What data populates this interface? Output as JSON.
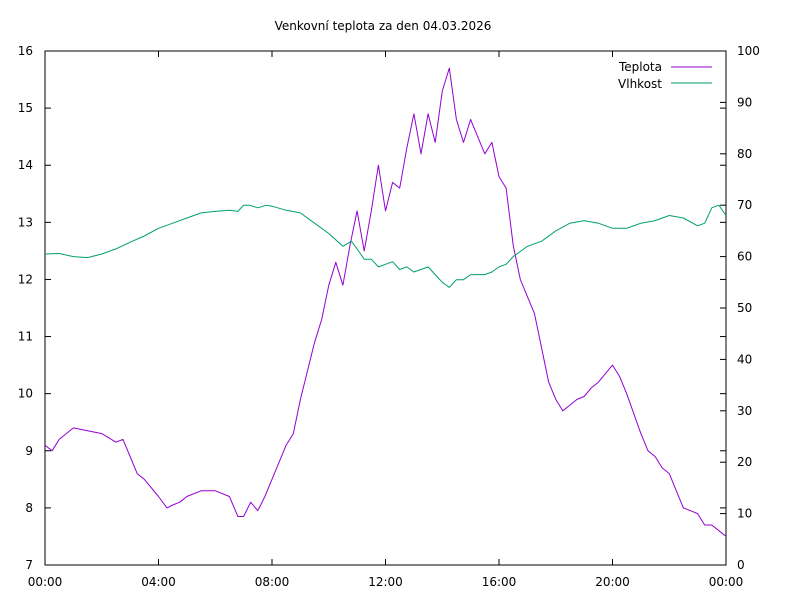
{
  "chart_data": {
    "type": "line",
    "title": "Venkovní teplota za den 04.03.2026",
    "xlabel": "",
    "ylabel": "",
    "y2label": "",
    "x_ticks": [
      "00:00",
      "04:00",
      "08:00",
      "12:00",
      "16:00",
      "20:00",
      "00:00"
    ],
    "x_range_hours": [
      0,
      24
    ],
    "ylim": [
      7,
      16
    ],
    "y_ticks": [
      "7",
      "8",
      "9",
      "10",
      "11",
      "12",
      "13",
      "14",
      "15",
      "16"
    ],
    "y2lim": [
      0,
      100
    ],
    "y2_ticks": [
      "0",
      "10",
      "20",
      "30",
      "40",
      "50",
      "60",
      "70",
      "80",
      "90",
      "100"
    ],
    "grid": false,
    "legend_position": "top-right",
    "series": [
      {
        "name": "Teplota",
        "axis": "y",
        "color": "#9400d3",
        "x": [
          0,
          0.25,
          0.5,
          0.75,
          1.0,
          1.5,
          2.0,
          2.5,
          2.75,
          3.0,
          3.25,
          3.5,
          4.0,
          4.3,
          4.5,
          4.75,
          5.0,
          5.5,
          5.75,
          6.0,
          6.5,
          6.8,
          7.0,
          7.25,
          7.5,
          7.75,
          8.0,
          8.25,
          8.5,
          8.75,
          9.0,
          9.25,
          9.5,
          9.75,
          10.0,
          10.25,
          10.5,
          10.75,
          11.0,
          11.25,
          11.5,
          11.75,
          12.0,
          12.25,
          12.5,
          12.75,
          13.0,
          13.25,
          13.5,
          13.75,
          14.0,
          14.25,
          14.5,
          14.75,
          15.0,
          15.25,
          15.5,
          15.75,
          16.0,
          16.25,
          16.5,
          16.75,
          17.0,
          17.25,
          17.5,
          17.75,
          18.0,
          18.25,
          18.5,
          18.75,
          19.0,
          19.25,
          19.5,
          19.75,
          20.0,
          20.25,
          20.5,
          20.75,
          21.0,
          21.25,
          21.5,
          21.75,
          22.0,
          22.25,
          22.5,
          22.75,
          23.0,
          23.25,
          23.5,
          23.75,
          24.0
        ],
        "values": [
          9.1,
          9.0,
          9.2,
          9.3,
          9.4,
          9.35,
          9.3,
          9.15,
          9.2,
          8.9,
          8.6,
          8.5,
          8.2,
          8.0,
          8.05,
          8.1,
          8.2,
          8.3,
          8.3,
          8.3,
          8.2,
          7.85,
          7.85,
          8.1,
          7.95,
          8.2,
          8.5,
          8.8,
          9.1,
          9.3,
          9.9,
          10.4,
          10.9,
          11.3,
          11.9,
          12.3,
          11.9,
          12.6,
          13.2,
          12.5,
          13.2,
          14.0,
          13.2,
          13.7,
          13.6,
          14.3,
          14.9,
          14.2,
          14.9,
          14.4,
          15.3,
          15.7,
          14.8,
          14.4,
          14.8,
          14.5,
          14.2,
          14.4,
          13.8,
          13.6,
          12.6,
          12.0,
          11.7,
          11.4,
          10.8,
          10.2,
          9.9,
          9.7,
          9.8,
          9.9,
          9.95,
          10.1,
          10.2,
          10.35,
          10.5,
          10.3,
          10.0,
          9.65,
          9.3,
          9.0,
          8.9,
          8.7,
          8.6,
          8.3,
          8.0,
          7.95,
          7.9,
          7.7,
          7.7,
          7.6,
          7.5
        ]
      },
      {
        "name": "Vlhkost",
        "axis": "y2",
        "color": "#009e73",
        "x": [
          0,
          0.5,
          1.0,
          1.5,
          2.0,
          2.5,
          3.0,
          3.5,
          4.0,
          4.5,
          5.0,
          5.5,
          6.0,
          6.5,
          6.8,
          7.0,
          7.2,
          7.5,
          7.8,
          8.0,
          8.5,
          9.0,
          9.5,
          10.0,
          10.5,
          10.8,
          11.0,
          11.25,
          11.5,
          11.75,
          12.0,
          12.25,
          12.5,
          12.75,
          13.0,
          13.25,
          13.5,
          13.75,
          14.0,
          14.25,
          14.5,
          14.75,
          15.0,
          15.25,
          15.5,
          15.75,
          16.0,
          16.25,
          16.5,
          16.75,
          17.0,
          17.5,
          18.0,
          18.5,
          19.0,
          19.5,
          20.0,
          20.5,
          21.0,
          21.5,
          22.0,
          22.5,
          23.0,
          23.25,
          23.5,
          23.75,
          24.0
        ],
        "values": [
          60.5,
          60.6,
          60.0,
          59.8,
          60.5,
          61.5,
          62.8,
          64.0,
          65.5,
          66.5,
          67.5,
          68.5,
          68.8,
          69.0,
          68.8,
          70.0,
          70.0,
          69.5,
          70.0,
          69.8,
          69.0,
          68.5,
          66.5,
          64.5,
          62.0,
          63.0,
          61.5,
          59.5,
          59.5,
          58.0,
          58.5,
          59.0,
          57.5,
          58.0,
          57.0,
          57.5,
          58.0,
          56.5,
          55.0,
          54.0,
          55.5,
          55.5,
          56.5,
          56.5,
          56.5,
          57.0,
          58.0,
          58.5,
          60.0,
          61.0,
          62.0,
          63.0,
          65.0,
          66.5,
          67.0,
          66.5,
          65.5,
          65.5,
          66.5,
          67.0,
          68.0,
          67.5,
          66.0,
          66.5,
          69.5,
          70.0,
          68.0
        ]
      }
    ]
  }
}
